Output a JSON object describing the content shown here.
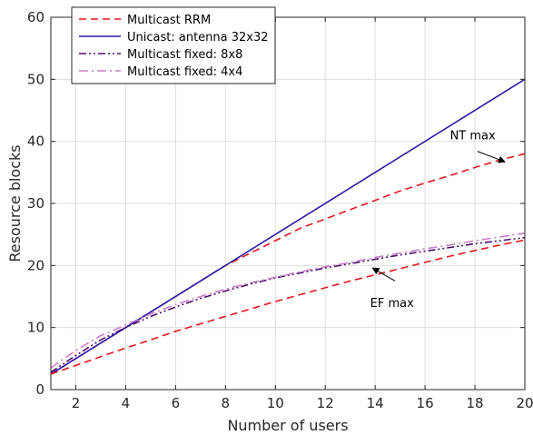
{
  "chart_data": {
    "type": "line",
    "xlabel": "Number of users",
    "ylabel": "Resource blocks",
    "xlim": [
      1,
      20
    ],
    "ylim": [
      0,
      60
    ],
    "xticks": [
      2,
      4,
      6,
      8,
      10,
      12,
      14,
      16,
      18,
      20
    ],
    "yticks": [
      0,
      10,
      20,
      30,
      40,
      50,
      60
    ],
    "grid": true,
    "legend_position": "top-left",
    "series": [
      {
        "name": "Multicast RRM",
        "color": "#e8141a",
        "dash": "dashed",
        "x": [
          1,
          2,
          3,
          4,
          5,
          6,
          7,
          8,
          9,
          10,
          11,
          12,
          13,
          14,
          15,
          16,
          17,
          18,
          19,
          20
        ],
        "y": [
          2.5,
          5.0,
          7.5,
          10.0,
          12.5,
          15.0,
          17.5,
          20.0,
          22.0,
          24.0,
          26.0,
          27.5,
          29.0,
          30.5,
          32.0,
          33.3,
          34.5,
          35.8,
          37.0,
          38.0
        ]
      },
      {
        "name": "Unicast: antenna 32x32",
        "color": "#2b1aa6",
        "dash": "solid",
        "x": [
          1,
          20
        ],
        "y": [
          2.5,
          50.0
        ]
      },
      {
        "name": "Multicast fixed: 8x8",
        "color": "#4b0f6e",
        "dash": "dashdotdot",
        "x": [
          1,
          2,
          3,
          4,
          5,
          6,
          7,
          8,
          9,
          10,
          11,
          12,
          13,
          14,
          15,
          16,
          17,
          18,
          19,
          20
        ],
        "y": [
          2.8,
          5.5,
          8.0,
          10.0,
          11.8,
          13.3,
          14.7,
          15.9,
          17.0,
          18.0,
          18.8,
          19.6,
          20.3,
          21.0,
          21.7,
          22.3,
          22.9,
          23.5,
          24.0,
          24.5
        ]
      },
      {
        "name": "Multicast fixed: 4x4",
        "color": "#c97fc8",
        "dash": "dashdot",
        "x": [
          1,
          2,
          3,
          4,
          5,
          6,
          7,
          8,
          9,
          10,
          11,
          12,
          13,
          14,
          15,
          16,
          17,
          18,
          19,
          20
        ],
        "y": [
          3.5,
          6.3,
          8.7,
          10.4,
          12.2,
          13.7,
          15.0,
          16.2,
          17.2,
          18.1,
          19.0,
          19.8,
          20.5,
          21.3,
          22.0,
          22.7,
          23.3,
          24.0,
          24.6,
          25.2
        ]
      },
      {
        "name": "",
        "color": "#e8141a",
        "dash": "dashed",
        "x": [
          1,
          2,
          3,
          4,
          5,
          6,
          7,
          8,
          9,
          10,
          11,
          12,
          13,
          14,
          15,
          16,
          17,
          18,
          19,
          20
        ],
        "y": [
          2.5,
          3.9,
          5.3,
          6.7,
          8.0,
          9.4,
          10.6,
          11.8,
          13.0,
          14.2,
          15.3,
          16.4,
          17.5,
          18.5,
          19.5,
          20.5,
          21.5,
          22.4,
          23.3,
          24.1
        ]
      }
    ],
    "annotations": [
      {
        "text": "NT max",
        "text_x": 17.0,
        "text_y": 40.3,
        "arrow_from": [
          18.1,
          38.4
        ],
        "arrow_to": [
          19.2,
          36.7
        ]
      },
      {
        "text": "EF max",
        "text_x": 13.8,
        "text_y": 13.3,
        "arrow_from": [
          14.8,
          17.5
        ],
        "arrow_to": [
          13.9,
          19.6
        ]
      }
    ]
  }
}
